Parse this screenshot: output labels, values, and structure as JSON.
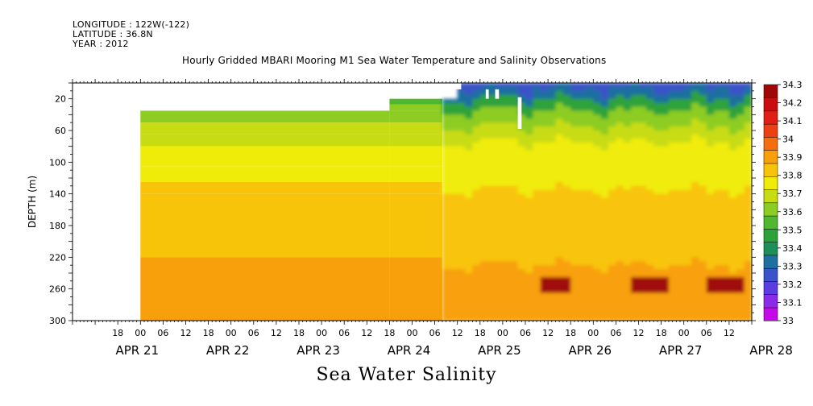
{
  "header": {
    "longitude": "LONGITUDE : 122W(-122)",
    "latitude": "LATITUDE : 36.8N",
    "year": "YEAR : 2012",
    "title": "Hourly Gridded MBARI Mooring M1 Sea Water Temperature and Salinity Observations"
  },
  "bottom_title": "Sea Water Salinity",
  "chart_data": {
    "type": "heatmap",
    "title": "Hourly Gridded MBARI Mooring M1 Sea Water Temperature and Salinity Observations",
    "xlabel": "",
    "ylabel": "DEPTH (m)",
    "ylim": [
      300,
      0
    ],
    "y_reversed": true,
    "y_ticks": [
      20,
      60,
      100,
      140,
      180,
      220,
      260,
      300
    ],
    "x_tick_labels": [
      "18",
      "00",
      "06",
      "12",
      "18",
      "00",
      "06",
      "12",
      "18",
      "00",
      "06",
      "12",
      "18",
      "00",
      "06",
      "12",
      "18",
      "00",
      "06",
      "12",
      "18",
      "00",
      "06",
      "12",
      "18",
      "00",
      "06",
      "12"
    ],
    "date_labels": [
      "APR 21",
      "APR 22",
      "APR 23",
      "APR 24",
      "APR 25",
      "APR 26",
      "APR 27",
      "APR 28"
    ],
    "colorbar": {
      "levels": [
        33,
        33.1,
        33.2,
        33.3,
        33.4,
        33.5,
        33.6,
        33.7,
        33.8,
        33.9,
        34,
        34.1,
        34.2,
        34.3
      ],
      "colors": [
        "#c40ae8",
        "#8a2be8",
        "#5a3ce0",
        "#3a53c8",
        "#1f6fa0",
        "#1f8f5a",
        "#2ea23a",
        "#4fb82e",
        "#8dcc22",
        "#c8dc14",
        "#f0ec0a",
        "#f8c40a",
        "#f8a00c",
        "#f46e10",
        "#ec4014",
        "#e01e16",
        "#c80e10",
        "#a00808"
      ]
    },
    "profiles": {
      "early": {
        "description_hours": "Apr 21 00h to Apr 24 ~15h",
        "bands": [
          {
            "depth_top": 35,
            "depth_bottom": 50,
            "salinity": 33.85
          },
          {
            "depth_top": 50,
            "depth_bottom": 65,
            "salinity": 33.9
          },
          {
            "depth_top": 65,
            "depth_bottom": 80,
            "salinity": 33.95
          },
          {
            "depth_top": 80,
            "depth_bottom": 105,
            "salinity": 34.0
          },
          {
            "depth_top": 105,
            "depth_bottom": 125,
            "salinity": 34.05
          },
          {
            "depth_top": 125,
            "depth_bottom": 140,
            "salinity": 34.1
          },
          {
            "depth_top": 140,
            "depth_bottom": 220,
            "salinity": 34.15
          },
          {
            "depth_top": 220,
            "depth_bottom": 240,
            "salinity": 34.2
          },
          {
            "depth_top": 240,
            "depth_bottom": 300,
            "salinity": 34.25
          }
        ]
      },
      "late": {
        "description_hours": "Apr 25 to Apr 28 12h",
        "bands": [
          {
            "depth_top": 0,
            "depth_bottom": 10,
            "salinity": 33.3
          },
          {
            "depth_top": 10,
            "depth_bottom": 25,
            "salinity": 33.5
          },
          {
            "depth_top": 25,
            "depth_bottom": 40,
            "salinity": 33.7
          },
          {
            "depth_top": 40,
            "depth_bottom": 60,
            "salinity": 33.85
          },
          {
            "depth_top": 60,
            "depth_bottom": 80,
            "salinity": 33.95
          },
          {
            "depth_top": 80,
            "depth_bottom": 110,
            "salinity": 34.0
          },
          {
            "depth_top": 110,
            "depth_bottom": 140,
            "salinity": 34.1
          },
          {
            "depth_top": 140,
            "depth_bottom": 200,
            "salinity": 34.1
          },
          {
            "depth_top": 200,
            "depth_bottom": 230,
            "salinity": 34.15
          },
          {
            "depth_top": 230,
            "depth_bottom": 270,
            "salinity": 34.25
          },
          {
            "depth_top": 270,
            "depth_bottom": 300,
            "salinity": 34.2
          }
        ]
      }
    }
  }
}
